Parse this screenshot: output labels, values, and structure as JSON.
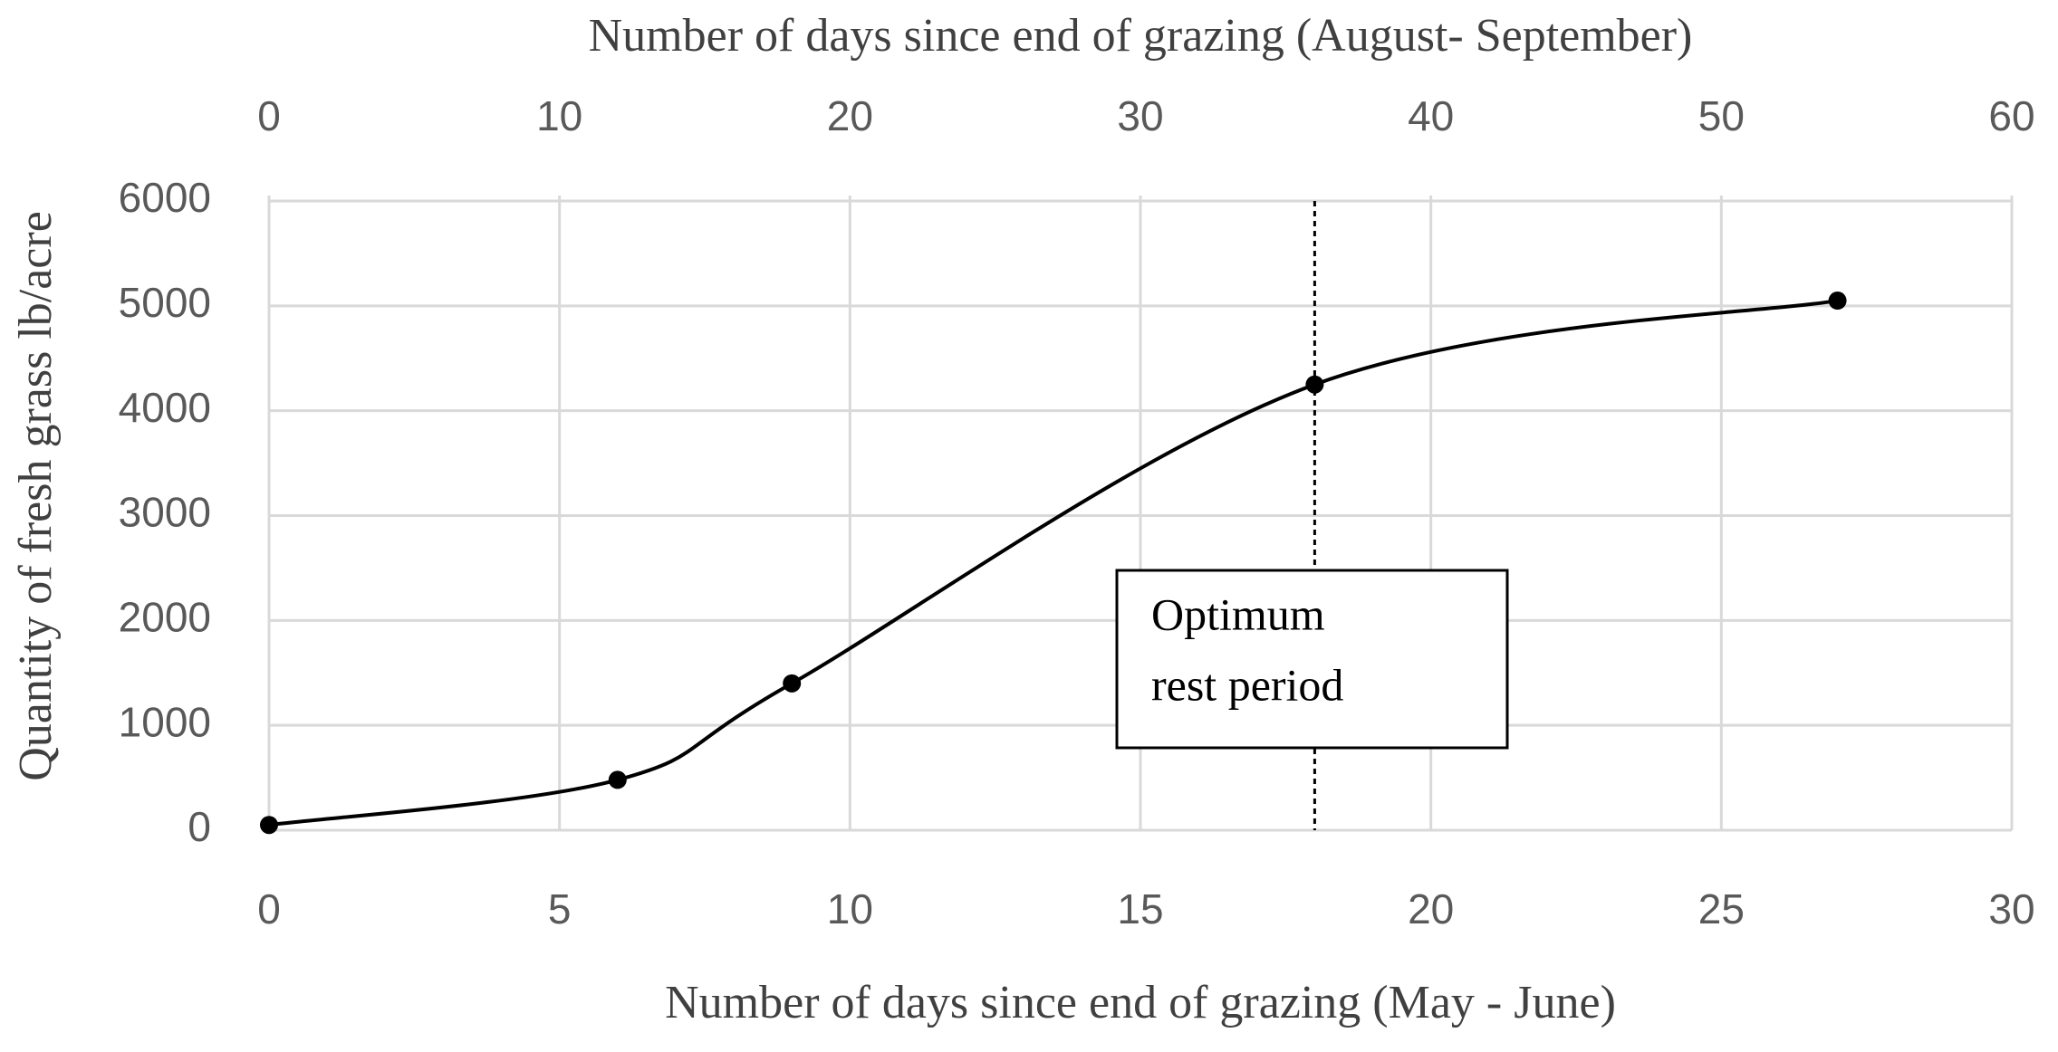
{
  "chart_data": {
    "type": "line",
    "smooth": true,
    "markers": true,
    "color": "#000000",
    "xlabel": "Number of days since end of grazing (May - June)",
    "x2label": "Number of days since end of grazing (August- September)",
    "ylabel": "Quantity of fresh grass lb/acre",
    "x": [
      0,
      6,
      9,
      18,
      27
    ],
    "values": [
      50,
      480,
      1400,
      4250,
      5050
    ],
    "xlim": [
      0,
      30
    ],
    "xticks": [
      0,
      5,
      10,
      15,
      20,
      25,
      30
    ],
    "x2lim": [
      0,
      60
    ],
    "x2ticks": [
      0,
      10,
      20,
      30,
      40,
      50,
      60
    ],
    "ylim": [
      0,
      6000
    ],
    "yticks": [
      0,
      1000,
      2000,
      3000,
      4000,
      5000,
      6000
    ],
    "grid": true,
    "reference_line": {
      "x": 18,
      "style": "dotted"
    },
    "annotation": [
      "Optimum",
      "rest period"
    ]
  }
}
